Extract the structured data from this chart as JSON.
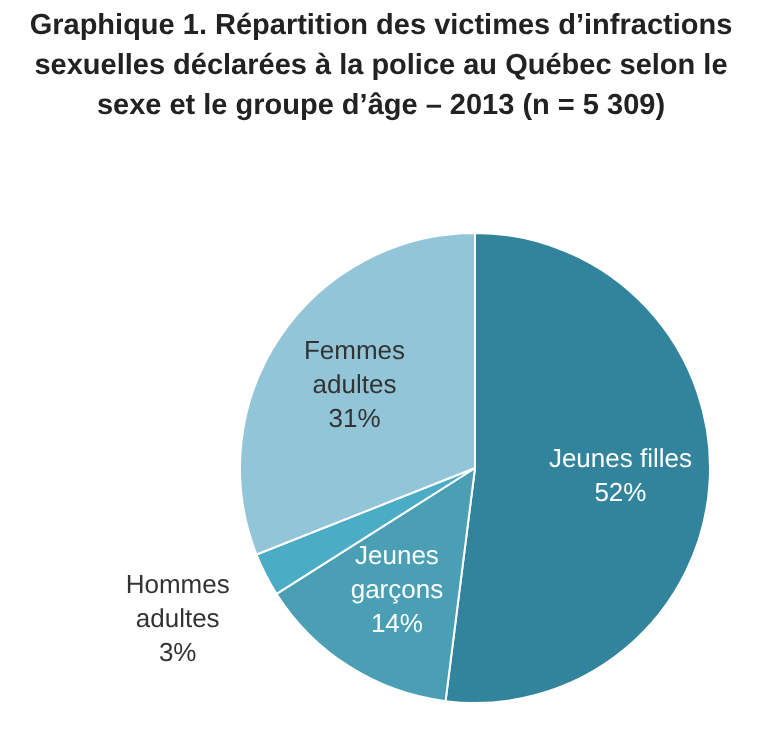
{
  "chart_data": {
    "type": "pie",
    "title": "Graphique 1. Répartition des victimes d’infractions sexuelles déclarées à la police au Québec selon le sexe et le groupe d’âge – 2013 (n = 5 309)",
    "categories": [
      "Jeunes filles",
      "Jeunes garçons",
      "Hommes adultes",
      "Femmes adultes"
    ],
    "values": [
      52,
      14,
      3,
      31
    ],
    "value_labels": [
      "52%",
      "14%",
      "3%",
      "31%"
    ],
    "colors": [
      "#31849b",
      "#4a9fb4",
      "#4bacc6",
      "#93c5d8"
    ],
    "legend": false
  }
}
